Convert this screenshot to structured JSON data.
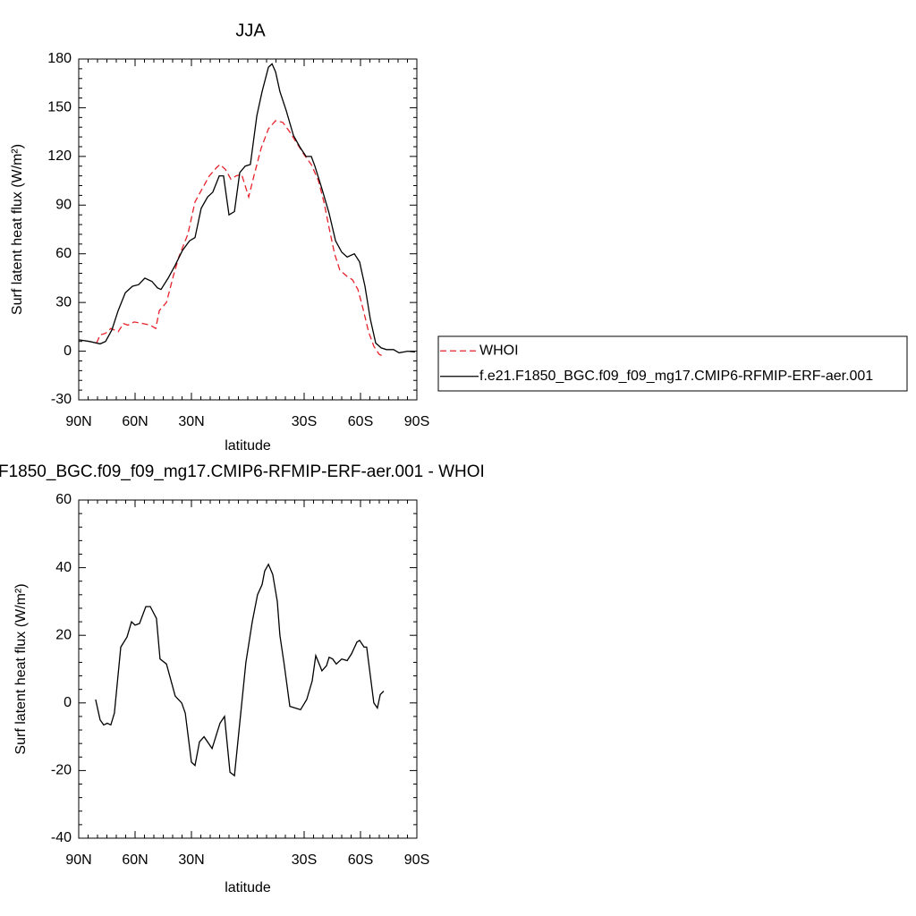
{
  "chart_data": [
    {
      "type": "line",
      "title": "JJA",
      "x_label": "latitude",
      "y_label": "Surf latent heat flux (W/m²)",
      "xlim": [
        90,
        -90
      ],
      "xticks": [
        {
          "value": 90,
          "label": "90N"
        },
        {
          "value": 60,
          "label": "60N"
        },
        {
          "value": 30,
          "label": "30N"
        },
        {
          "value": -30,
          "label": "30S"
        },
        {
          "value": -60,
          "label": "60S"
        },
        {
          "value": -90,
          "label": "90S"
        }
      ],
      "ylim": [
        -30,
        180
      ],
      "yticks": [
        -30,
        0,
        30,
        60,
        90,
        120,
        150,
        180
      ],
      "legend": "right",
      "series": [
        {
          "name": "WHOI",
          "color": "#e8202a",
          "style": "dashed",
          "x": [
            80.5,
            78.6,
            75.7,
            72.9,
            69,
            66.2,
            63.8,
            60.5,
            55.7,
            51.9,
            49,
            47.1,
            43.3,
            39.5,
            36.7,
            31.9,
            28.1,
            24.3,
            20.5,
            16.7,
            14.8,
            11.9,
            9,
            6.2,
            3.3,
            -0.5,
            -3.3,
            -7.1,
            -11,
            -14.8,
            -18.6,
            -22.4,
            -26.2,
            -30,
            -33.8,
            -37.6,
            -40.5,
            -43.3,
            -46.2,
            -49,
            -52.9,
            -55.7,
            -58.6,
            -61.4,
            -64.3,
            -67.1,
            -70,
            -71.9
          ],
          "values": [
            5,
            10,
            11,
            14,
            12,
            17,
            16,
            18,
            17,
            16,
            14,
            25,
            30,
            47,
            58,
            72,
            92,
            100,
            108,
            113,
            115,
            112,
            106,
            108,
            109,
            95,
            108,
            125,
            137,
            142,
            141,
            135,
            128,
            121,
            115,
            105,
            92,
            76,
            60,
            50,
            46,
            44,
            38,
            26,
            12,
            3,
            -2,
            -3
          ]
        },
        {
          "name": "f.e21.F1850_BGC.f09_f09_mg17.CMIP6-RFMIP-ERF-aer.001",
          "color": "#000000",
          "style": "solid",
          "x": [
            90,
            84.3,
            78.6,
            75.7,
            72.4,
            69,
            65.2,
            61.4,
            58.1,
            54.8,
            51,
            48.1,
            46.2,
            42.4,
            38.6,
            34.8,
            31,
            28.1,
            24.8,
            21.4,
            18.6,
            15.2,
            12.9,
            10,
            7.1,
            4.3,
            1.4,
            -1.4,
            -4.8,
            -7.6,
            -11,
            -12.9,
            -14.8,
            -17.1,
            -20.5,
            -24.3,
            -27.6,
            -31,
            -33.8,
            -35.7,
            -39.5,
            -43.3,
            -46.7,
            -50,
            -52.9,
            -56.7,
            -59.5,
            -62.4,
            -65.2,
            -68.1,
            -71,
            -73.8,
            -77.6,
            -80.5,
            -85.2,
            -89
          ],
          "values": [
            7,
            6,
            4.5,
            6,
            13,
            25,
            36,
            40,
            41,
            45,
            43,
            39,
            38,
            45,
            53,
            62,
            68,
            70,
            88,
            95,
            98,
            108,
            108,
            84,
            86,
            110,
            114,
            115,
            145,
            160,
            175,
            177,
            172,
            160,
            148,
            133,
            126,
            120,
            120,
            114,
            100,
            85,
            68,
            61,
            58,
            60,
            55,
            40,
            20,
            5,
            2,
            1,
            1,
            -1,
            0,
            -0.5
          ]
        }
      ]
    },
    {
      "type": "line",
      "title": "F1850_BGC.f09_f09_mg17.CMIP6-RFMIP-ERF-aer.001 - WHOI",
      "x_label": "latitude",
      "y_label": "Surf latent heat flux (W/m²)",
      "xlim": [
        90,
        -90
      ],
      "xticks": [
        {
          "value": 90,
          "label": "90N"
        },
        {
          "value": 60,
          "label": "60N"
        },
        {
          "value": 30,
          "label": "30N"
        },
        {
          "value": -30,
          "label": "30S"
        },
        {
          "value": -60,
          "label": "60S"
        },
        {
          "value": -90,
          "label": "90S"
        }
      ],
      "ylim": [
        -40,
        60
      ],
      "yticks": [
        -40,
        -20,
        0,
        20,
        40,
        60
      ],
      "series": [
        {
          "color": "#000000",
          "style": "solid",
          "x": [
            81,
            78.6,
            76.7,
            74.8,
            72.9,
            71,
            67.6,
            64.3,
            61.9,
            60,
            57.6,
            54.3,
            51.9,
            48.6,
            46.7,
            43.3,
            38.6,
            35.2,
            33.3,
            30,
            28.1,
            25.7,
            23.3,
            19,
            14.8,
            12.4,
            9.5,
            7.1,
            4.3,
            1,
            -2.4,
            -5.2,
            -7.6,
            -9,
            -11,
            -13.3,
            -15.7,
            -17.1,
            -19.5,
            -22.4,
            -28.1,
            -31.4,
            -34.3,
            -36.2,
            -39.5,
            -41.9,
            -43.3,
            -45.2,
            -47.1,
            -50,
            -52.9,
            -55.2,
            -58.1,
            -59.5,
            -61.9,
            -63.3,
            -65.7,
            -67.1,
            -69,
            -70.5,
            -72.4
          ],
          "values": [
            1,
            -5,
            -6.5,
            -6,
            -6.5,
            -3,
            16.5,
            19.5,
            24,
            23,
            23.5,
            28.5,
            28.5,
            25,
            13,
            11.5,
            2,
            0,
            -3,
            -17.5,
            -18.5,
            -11.5,
            -10,
            -13.5,
            -6,
            -4,
            -20.5,
            -21.5,
            -6,
            12,
            24,
            32,
            35,
            39,
            41,
            38,
            30,
            20,
            11,
            -1,
            -2,
            1,
            6.5,
            14,
            9.5,
            11,
            13.5,
            13,
            11.5,
            13,
            12.5,
            14.5,
            18,
            18.5,
            16.5,
            16.5,
            6,
            0,
            -1.5,
            2.5,
            3.5
          ]
        }
      ]
    }
  ]
}
